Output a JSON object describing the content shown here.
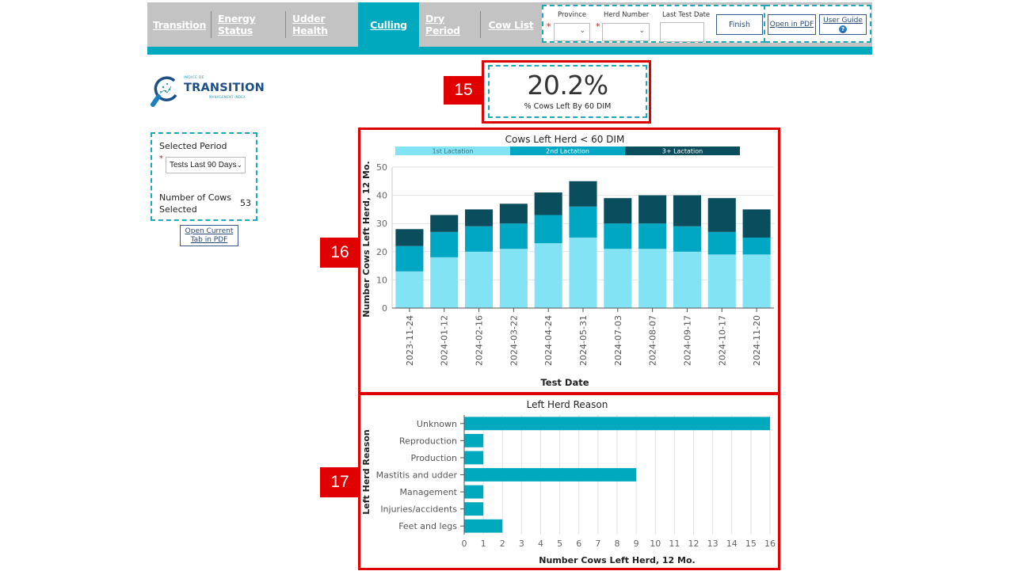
{
  "nav": {
    "tabs": [
      {
        "label": "Transition",
        "active": false
      },
      {
        "label": "Energy Status",
        "active": false
      },
      {
        "label": "Udder Health",
        "active": false
      },
      {
        "label": "Culling",
        "active": true
      },
      {
        "label": "Dry Period",
        "active": false
      },
      {
        "label": "Cow List",
        "active": false
      }
    ],
    "filters": {
      "province_label": "Province",
      "province_value": "",
      "herd_label": "Herd Number",
      "herd_value": "",
      "last_test_label": "Last Test Date",
      "last_test_value": "",
      "finish_label": "Finish"
    },
    "open_pdf_label": "Open in PDF",
    "user_guide_label": "User Guide",
    "help_glyph": "?"
  },
  "logo": {
    "small_text": "INDICE DE",
    "big_text": "TRANSITION",
    "sub_text": "MANAGEMENT INDEX",
    "icon": "magnifier-icon"
  },
  "sidebar": {
    "selected_period_label": "Selected Period",
    "selected_period_value": "Tests Last 90 Days",
    "cows_label": "Number of Cows Selected",
    "cows_value": "53",
    "open_tab_pdf_label": "Open Current Tab in PDF",
    "required_marker": "*"
  },
  "kpi": {
    "value": "20.2%",
    "label": "% Cows Left By 60 DIM"
  },
  "annotations": {
    "kpi_badge": "15",
    "stacked_badge": "16",
    "reason_badge": "17"
  },
  "colors": {
    "accent": "#00a9be",
    "nav_gray": "#c3c3c3",
    "lact1": "#82e3f5",
    "lact2": "#00a7c2",
    "lact3": "#0a4d5c",
    "bar": "#00a9be",
    "highlight": "#e00000"
  },
  "chart_data": [
    {
      "type": "bar",
      "stacked": true,
      "title": "Cows Left Herd < 60 DIM",
      "xlabel": "Test Date",
      "ylabel": "Number Cows Left Herd, 12 Mo.",
      "ylim": [
        0,
        50
      ],
      "yticks": [
        0,
        10,
        20,
        30,
        40,
        50
      ],
      "grid": true,
      "legend_position": "top",
      "categories": [
        "2023-11-24",
        "2024-01-12",
        "2024-02-16",
        "2024-03-22",
        "2024-04-24",
        "2024-05-31",
        "2024-07-03",
        "2024-08-07",
        "2024-09-17",
        "2024-10-17",
        "2024-11-20"
      ],
      "series": [
        {
          "name": "1st Lactation",
          "values": [
            13,
            18,
            20,
            21,
            23,
            25,
            21,
            21,
            20,
            19,
            19
          ]
        },
        {
          "name": "2nd Lactation",
          "values": [
            9,
            9,
            9,
            9,
            10,
            11,
            9,
            9,
            9,
            8,
            6
          ]
        },
        {
          "name": "3+ Lactation",
          "values": [
            6,
            6,
            6,
            7,
            8,
            9,
            9,
            10,
            11,
            12,
            10
          ]
        }
      ]
    },
    {
      "type": "bar",
      "orientation": "horizontal",
      "title": "Left Herd Reason",
      "xlabel": "Number Cows Left Herd, 12 Mo.",
      "ylabel": "Left Herd Reason",
      "xlim": [
        0,
        16
      ],
      "xticks": [
        0,
        1,
        2,
        3,
        4,
        5,
        6,
        7,
        8,
        9,
        10,
        11,
        12,
        13,
        14,
        15,
        16
      ],
      "grid": true,
      "categories": [
        "Unknown",
        "Reproduction",
        "Production",
        "Mastitis and udder",
        "Management",
        "Injuries/accidents",
        "Feet and legs"
      ],
      "values": [
        16,
        1,
        1,
        9,
        1,
        1,
        2
      ]
    }
  ]
}
